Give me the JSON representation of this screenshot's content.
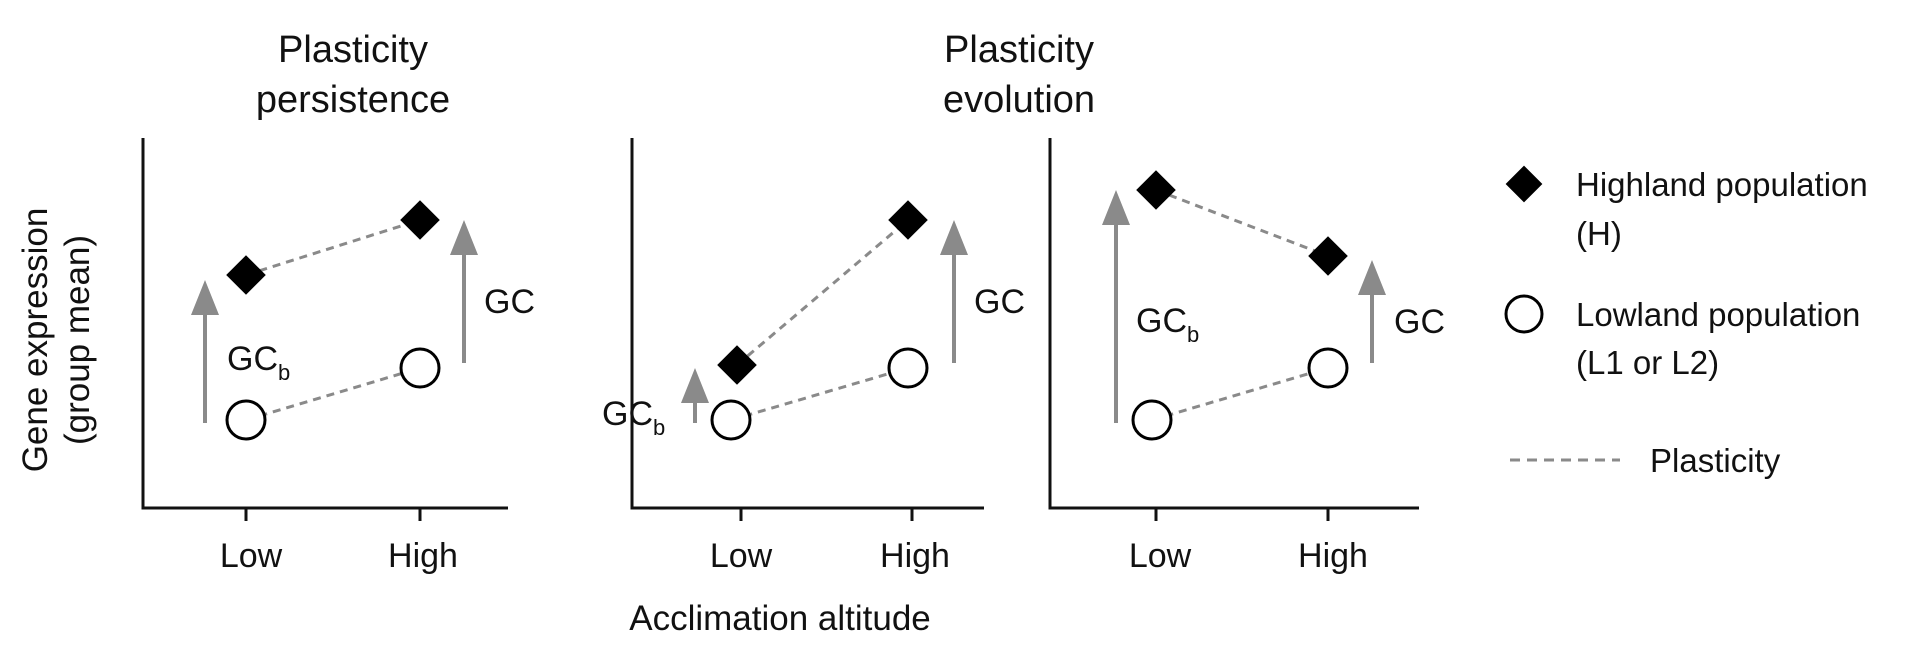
{
  "titles": {
    "left": {
      "line1": "Plasticity",
      "line2": "persistence"
    },
    "middle": {
      "line1": "Plasticity",
      "line2": "evolution"
    }
  },
  "axes": {
    "ylabel": {
      "line1": "Gene expression",
      "line2": "(group mean)"
    },
    "xlabel": "Acclimation altitude"
  },
  "panels": [
    {
      "ticks": [
        "Low",
        "High"
      ],
      "gc": {
        "base": "GC",
        "sub": "b"
      },
      "gc2": "GC"
    },
    {
      "ticks": [
        "Low",
        "High"
      ],
      "gc": {
        "base": "GC",
        "sub": "b"
      },
      "gc2": "GC"
    },
    {
      "ticks": [
        "Low",
        "High"
      ],
      "gc": {
        "base": "GC",
        "sub": "b"
      },
      "gc2": "GC"
    }
  ],
  "legend": {
    "highland": {
      "line1": "Highland population",
      "line2": "(H)"
    },
    "lowland": {
      "line1": "Lowland population",
      "line2": "(L1 or L2)"
    },
    "plasticity": "Plasticity"
  },
  "colors": {
    "marker": "#000000",
    "arrow": "#8a8a8a",
    "dash": "#8a8a8a"
  }
}
